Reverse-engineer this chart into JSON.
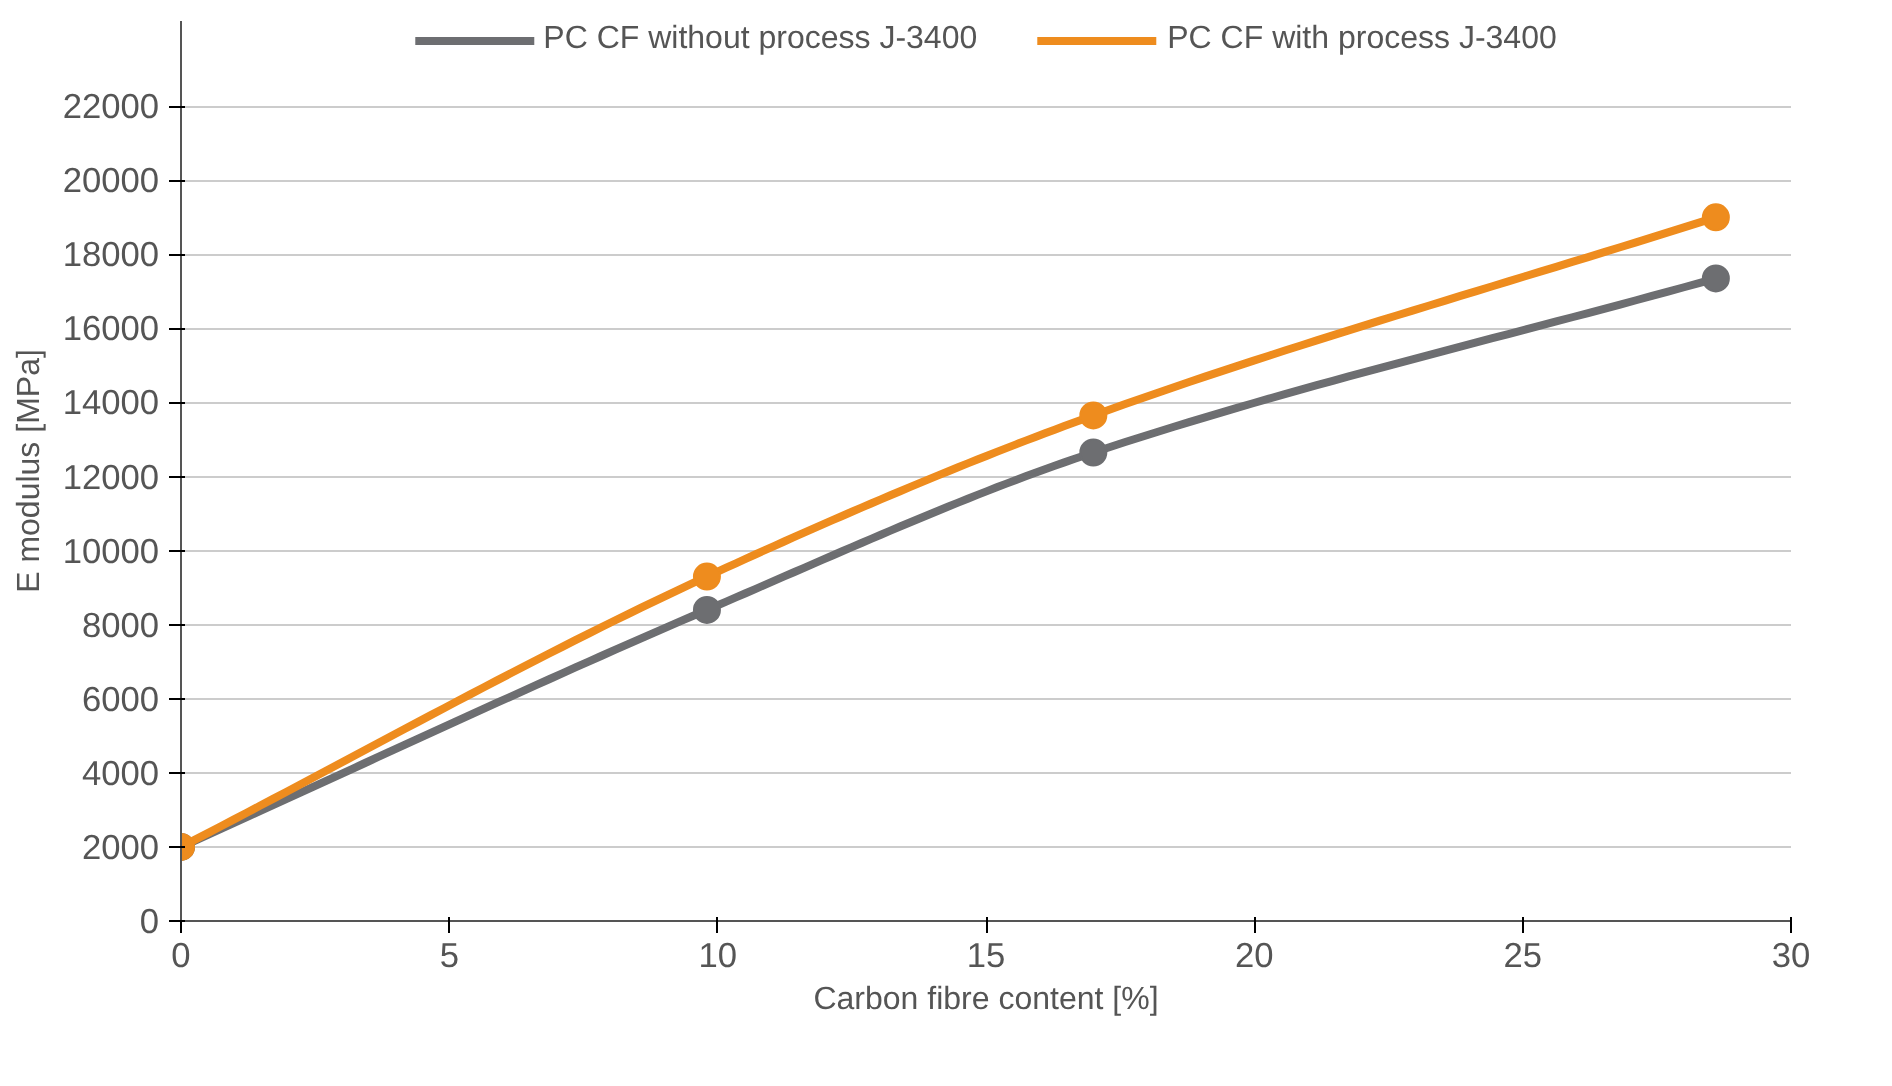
{
  "chart_data": {
    "type": "line",
    "xlabel": "Carbon fibre content [%]",
    "ylabel": "E modulus [MPa]",
    "xlim": [
      0,
      30
    ],
    "xticks": [
      0,
      5,
      10,
      15,
      20,
      25,
      30
    ],
    "ylim": [
      0,
      24300
    ],
    "yticks": [
      0,
      2000,
      4000,
      6000,
      8000,
      10000,
      12000,
      14000,
      16000,
      18000,
      20000,
      22000
    ],
    "grid": "y",
    "legend": "top",
    "marker": "circle",
    "line_style": "solid",
    "series": [
      {
        "name": "PC CF without process J-3400",
        "color": "#6d6e71",
        "x": [
          0,
          9.8,
          17,
          28.6
        ],
        "values": [
          2000,
          8400,
          12650,
          17350
        ]
      },
      {
        "name": "PC CF with process J-3400",
        "color": "#ee8c1e",
        "x": [
          0,
          9.8,
          17,
          28.6
        ],
        "values": [
          2000,
          9300,
          13650,
          19000
        ]
      }
    ]
  }
}
